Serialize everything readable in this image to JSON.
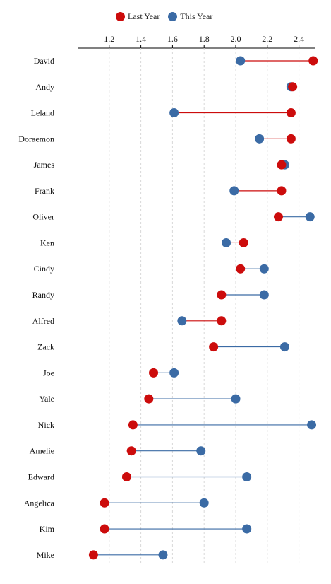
{
  "legend": {
    "last_year_label": "Last Year",
    "this_year_label": "This Year"
  },
  "colors": {
    "last_year": "#cc0c0c",
    "this_year": "#3b6ba5",
    "grid": "#d8d8d8",
    "axis": "#000000",
    "text": "#111111"
  },
  "chart_data": {
    "type": "dumbbell",
    "orientation": "horizontal",
    "xlim": [
      1.0,
      2.5
    ],
    "xticks": [
      "1.2",
      "1.4",
      "1.6",
      "1.8",
      "2.0",
      "2.2",
      "2.4"
    ],
    "grid": "vertical dashed",
    "legend_position": "top-center",
    "categories": [
      "David",
      "Andy",
      "Leland",
      "Doraemon",
      "James",
      "Frank",
      "Oliver",
      "Ken",
      "Cindy",
      "Randy",
      "Alfred",
      "Zack",
      "Joe",
      "Yale",
      "Nick",
      "Amelie",
      "Edward",
      "Angelica",
      "Kim",
      "Mike"
    ],
    "series": [
      {
        "name": "Last Year",
        "values": [
          2.49,
          2.36,
          2.35,
          2.35,
          2.29,
          2.29,
          2.27,
          2.05,
          2.03,
          1.91,
          1.91,
          1.86,
          1.48,
          1.45,
          1.35,
          1.34,
          1.31,
          1.17,
          1.17,
          1.1
        ]
      },
      {
        "name": "This Year",
        "values": [
          2.03,
          2.35,
          1.61,
          2.15,
          2.31,
          1.99,
          2.47,
          1.94,
          2.18,
          2.18,
          1.66,
          2.31,
          1.61,
          2.0,
          2.48,
          1.78,
          2.07,
          1.8,
          2.07,
          1.54
        ]
      }
    ]
  }
}
